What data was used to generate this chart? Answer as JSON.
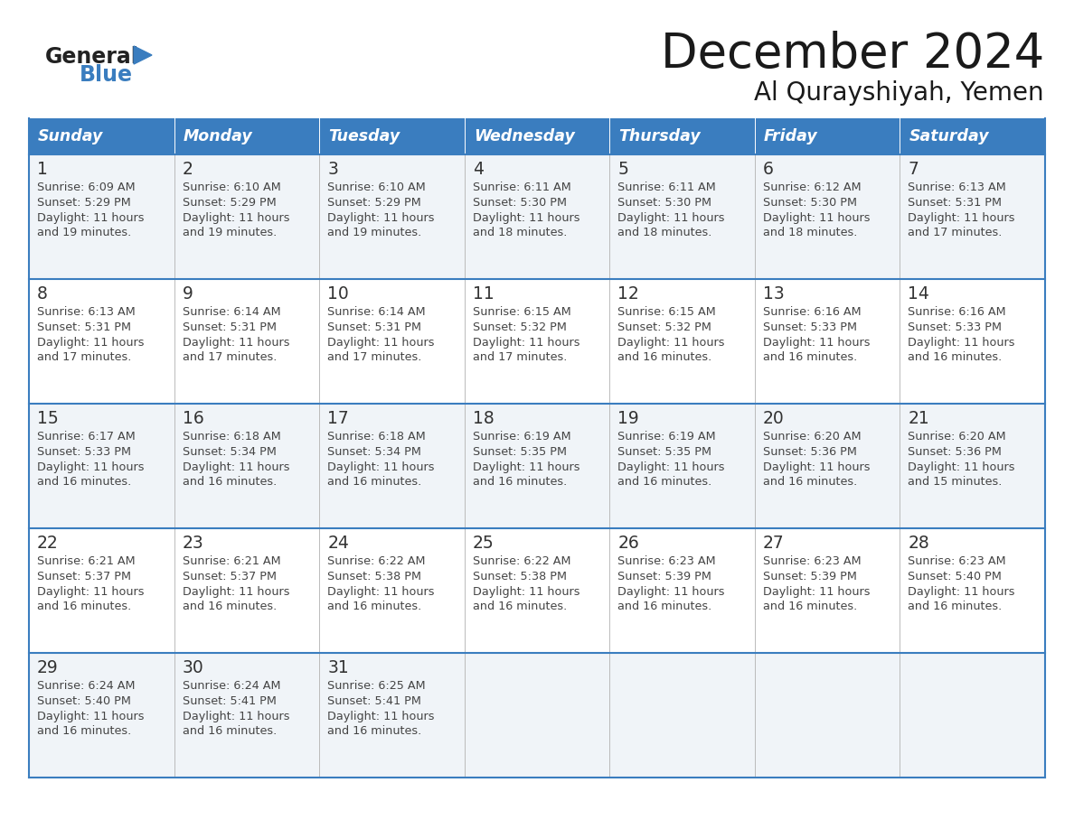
{
  "title": "December 2024",
  "subtitle": "Al Qurayshiyah, Yemen",
  "header_color": "#3a7dbf",
  "header_text_color": "#ffffff",
  "border_color": "#3a7dbf",
  "text_color": "#444444",
  "day_number_color": "#333333",
  "row_bg_odd": "#f0f4f8",
  "row_bg_even": "#ffffff",
  "day_headers": [
    "Sunday",
    "Monday",
    "Tuesday",
    "Wednesday",
    "Thursday",
    "Friday",
    "Saturday"
  ],
  "weeks": [
    [
      {
        "day": "1",
        "sunrise": "6:09 AM",
        "sunset": "5:29 PM",
        "dl1": "Daylight: 11 hours",
        "dl2": "and 19 minutes."
      },
      {
        "day": "2",
        "sunrise": "6:10 AM",
        "sunset": "5:29 PM",
        "dl1": "Daylight: 11 hours",
        "dl2": "and 19 minutes."
      },
      {
        "day": "3",
        "sunrise": "6:10 AM",
        "sunset": "5:29 PM",
        "dl1": "Daylight: 11 hours",
        "dl2": "and 19 minutes."
      },
      {
        "day": "4",
        "sunrise": "6:11 AM",
        "sunset": "5:30 PM",
        "dl1": "Daylight: 11 hours",
        "dl2": "and 18 minutes."
      },
      {
        "day": "5",
        "sunrise": "6:11 AM",
        "sunset": "5:30 PM",
        "dl1": "Daylight: 11 hours",
        "dl2": "and 18 minutes."
      },
      {
        "day": "6",
        "sunrise": "6:12 AM",
        "sunset": "5:30 PM",
        "dl1": "Daylight: 11 hours",
        "dl2": "and 18 minutes."
      },
      {
        "day": "7",
        "sunrise": "6:13 AM",
        "sunset": "5:31 PM",
        "dl1": "Daylight: 11 hours",
        "dl2": "and 17 minutes."
      }
    ],
    [
      {
        "day": "8",
        "sunrise": "6:13 AM",
        "sunset": "5:31 PM",
        "dl1": "Daylight: 11 hours",
        "dl2": "and 17 minutes."
      },
      {
        "day": "9",
        "sunrise": "6:14 AM",
        "sunset": "5:31 PM",
        "dl1": "Daylight: 11 hours",
        "dl2": "and 17 minutes."
      },
      {
        "day": "10",
        "sunrise": "6:14 AM",
        "sunset": "5:31 PM",
        "dl1": "Daylight: 11 hours",
        "dl2": "and 17 minutes."
      },
      {
        "day": "11",
        "sunrise": "6:15 AM",
        "sunset": "5:32 PM",
        "dl1": "Daylight: 11 hours",
        "dl2": "and 17 minutes."
      },
      {
        "day": "12",
        "sunrise": "6:15 AM",
        "sunset": "5:32 PM",
        "dl1": "Daylight: 11 hours",
        "dl2": "and 16 minutes."
      },
      {
        "day": "13",
        "sunrise": "6:16 AM",
        "sunset": "5:33 PM",
        "dl1": "Daylight: 11 hours",
        "dl2": "and 16 minutes."
      },
      {
        "day": "14",
        "sunrise": "6:16 AM",
        "sunset": "5:33 PM",
        "dl1": "Daylight: 11 hours",
        "dl2": "and 16 minutes."
      }
    ],
    [
      {
        "day": "15",
        "sunrise": "6:17 AM",
        "sunset": "5:33 PM",
        "dl1": "Daylight: 11 hours",
        "dl2": "and 16 minutes."
      },
      {
        "day": "16",
        "sunrise": "6:18 AM",
        "sunset": "5:34 PM",
        "dl1": "Daylight: 11 hours",
        "dl2": "and 16 minutes."
      },
      {
        "day": "17",
        "sunrise": "6:18 AM",
        "sunset": "5:34 PM",
        "dl1": "Daylight: 11 hours",
        "dl2": "and 16 minutes."
      },
      {
        "day": "18",
        "sunrise": "6:19 AM",
        "sunset": "5:35 PM",
        "dl1": "Daylight: 11 hours",
        "dl2": "and 16 minutes."
      },
      {
        "day": "19",
        "sunrise": "6:19 AM",
        "sunset": "5:35 PM",
        "dl1": "Daylight: 11 hours",
        "dl2": "and 16 minutes."
      },
      {
        "day": "20",
        "sunrise": "6:20 AM",
        "sunset": "5:36 PM",
        "dl1": "Daylight: 11 hours",
        "dl2": "and 16 minutes."
      },
      {
        "day": "21",
        "sunrise": "6:20 AM",
        "sunset": "5:36 PM",
        "dl1": "Daylight: 11 hours",
        "dl2": "and 15 minutes."
      }
    ],
    [
      {
        "day": "22",
        "sunrise": "6:21 AM",
        "sunset": "5:37 PM",
        "dl1": "Daylight: 11 hours",
        "dl2": "and 16 minutes."
      },
      {
        "day": "23",
        "sunrise": "6:21 AM",
        "sunset": "5:37 PM",
        "dl1": "Daylight: 11 hours",
        "dl2": "and 16 minutes."
      },
      {
        "day": "24",
        "sunrise": "6:22 AM",
        "sunset": "5:38 PM",
        "dl1": "Daylight: 11 hours",
        "dl2": "and 16 minutes."
      },
      {
        "day": "25",
        "sunrise": "6:22 AM",
        "sunset": "5:38 PM",
        "dl1": "Daylight: 11 hours",
        "dl2": "and 16 minutes."
      },
      {
        "day": "26",
        "sunrise": "6:23 AM",
        "sunset": "5:39 PM",
        "dl1": "Daylight: 11 hours",
        "dl2": "and 16 minutes."
      },
      {
        "day": "27",
        "sunrise": "6:23 AM",
        "sunset": "5:39 PM",
        "dl1": "Daylight: 11 hours",
        "dl2": "and 16 minutes."
      },
      {
        "day": "28",
        "sunrise": "6:23 AM",
        "sunset": "5:40 PM",
        "dl1": "Daylight: 11 hours",
        "dl2": "and 16 minutes."
      }
    ],
    [
      {
        "day": "29",
        "sunrise": "6:24 AM",
        "sunset": "5:40 PM",
        "dl1": "Daylight: 11 hours",
        "dl2": "and 16 minutes."
      },
      {
        "day": "30",
        "sunrise": "6:24 AM",
        "sunset": "5:41 PM",
        "dl1": "Daylight: 11 hours",
        "dl2": "and 16 minutes."
      },
      {
        "day": "31",
        "sunrise": "6:25 AM",
        "sunset": "5:41 PM",
        "dl1": "Daylight: 11 hours",
        "dl2": "and 16 minutes."
      },
      null,
      null,
      null,
      null
    ]
  ]
}
